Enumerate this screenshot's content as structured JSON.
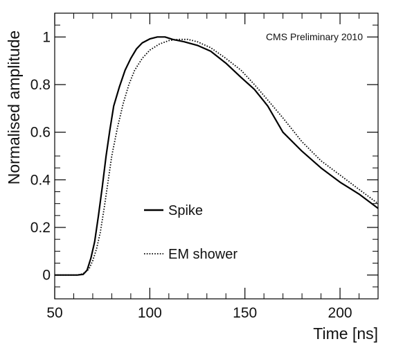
{
  "chart_data": {
    "type": "line",
    "title": "",
    "annotation": "CMS Preliminary 2010",
    "xlabel": "Time [ns]",
    "ylabel": "Normalised amplitude",
    "xlim": [
      50,
      220
    ],
    "ylim": [
      -0.1,
      1.1
    ],
    "x_ticks": [
      50,
      100,
      150,
      200
    ],
    "y_ticks": [
      0,
      0.2,
      0.4,
      0.6,
      0.8,
      1
    ],
    "x_tick_labels": [
      "50",
      "100",
      "150",
      "200"
    ],
    "y_tick_labels": [
      "0",
      "0.2",
      "0.4",
      "0.6",
      "0.8",
      "1"
    ],
    "grid": false,
    "legend_position": "middle-left",
    "series": [
      {
        "name": "Spike",
        "style": "solid",
        "color": "#000000",
        "points": [
          [
            50,
            0
          ],
          [
            62,
            0
          ],
          [
            65,
            0.003
          ],
          [
            67,
            0.02
          ],
          [
            69,
            0.07
          ],
          [
            71,
            0.14
          ],
          [
            73,
            0.25
          ],
          [
            75,
            0.37
          ],
          [
            77,
            0.5
          ],
          [
            79,
            0.61
          ],
          [
            81,
            0.71
          ],
          [
            84,
            0.79
          ],
          [
            87,
            0.86
          ],
          [
            90,
            0.91
          ],
          [
            93,
            0.95
          ],
          [
            96,
            0.975
          ],
          [
            100,
            0.992
          ],
          [
            104,
            1.0
          ],
          [
            108,
            1.0
          ],
          [
            112,
            0.99
          ],
          [
            118,
            0.98
          ],
          [
            125,
            0.965
          ],
          [
            132,
            0.94
          ],
          [
            140,
            0.89
          ],
          [
            148,
            0.83
          ],
          [
            155,
            0.78
          ],
          [
            162,
            0.71
          ],
          [
            170,
            0.6
          ],
          [
            180,
            0.52
          ],
          [
            190,
            0.45
          ],
          [
            200,
            0.39
          ],
          [
            210,
            0.34
          ],
          [
            220,
            0.28
          ]
        ]
      },
      {
        "name": "EM shower",
        "style": "dotted",
        "color": "#000000",
        "points": [
          [
            50,
            0
          ],
          [
            62,
            0
          ],
          [
            65,
            0.006
          ],
          [
            68,
            0.025
          ],
          [
            70,
            0.06
          ],
          [
            72,
            0.11
          ],
          [
            74,
            0.18
          ],
          [
            76,
            0.28
          ],
          [
            78,
            0.39
          ],
          [
            80,
            0.5
          ],
          [
            83,
            0.62
          ],
          [
            86,
            0.72
          ],
          [
            89,
            0.8
          ],
          [
            92,
            0.86
          ],
          [
            96,
            0.91
          ],
          [
            100,
            0.945
          ],
          [
            105,
            0.97
          ],
          [
            110,
            0.985
          ],
          [
            115,
            0.99
          ],
          [
            120,
            0.99
          ],
          [
            125,
            0.98
          ],
          [
            132,
            0.955
          ],
          [
            140,
            0.91
          ],
          [
            148,
            0.86
          ],
          [
            155,
            0.8
          ],
          [
            162,
            0.735
          ],
          [
            170,
            0.66
          ],
          [
            180,
            0.56
          ],
          [
            190,
            0.48
          ],
          [
            200,
            0.42
          ],
          [
            210,
            0.36
          ],
          [
            220,
            0.3
          ]
        ]
      }
    ]
  }
}
